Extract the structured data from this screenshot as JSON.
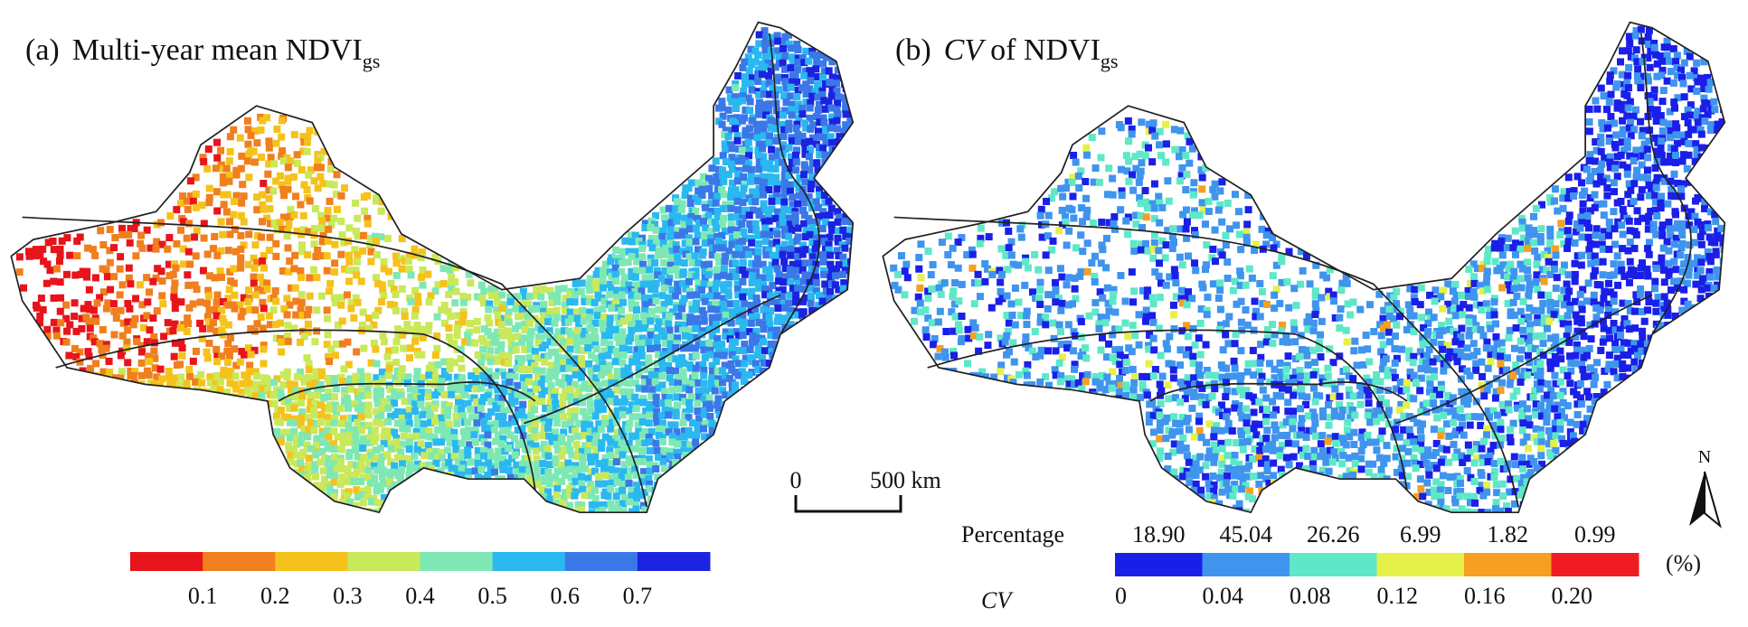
{
  "panel_a": {
    "label": "(a)",
    "title": "Multi-year mean NDVI",
    "title_subscript": "gs",
    "legend": {
      "colors": [
        "#e8141b",
        "#f07f1e",
        "#f5c21b",
        "#c9e85a",
        "#7ee8b4",
        "#2ab8f0",
        "#3a78e8",
        "#1a23e0"
      ],
      "ticks": [
        "0.1",
        "0.2",
        "0.3",
        "0.4",
        "0.5",
        "0.6",
        "0.7"
      ]
    }
  },
  "panel_b": {
    "label": "(b)",
    "title_italic": "CV",
    "title": "of NDVI",
    "title_subscript": "gs",
    "legend": {
      "row_label": "Percentage",
      "percentages": [
        "18.90",
        "45.04",
        "26.26",
        "6.99",
        "1.82",
        "0.99"
      ],
      "axis_label": "CV",
      "unit": "(%)",
      "colors": [
        "#1a1fe8",
        "#3f94ee",
        "#5ee8c8",
        "#e6f04a",
        "#f5a020",
        "#f01c24"
      ],
      "ticks": [
        "0",
        "0.04",
        "0.08",
        "0.12",
        "0.16",
        "0.20"
      ]
    }
  },
  "scale_bar": {
    "start": "0",
    "end": "500 km"
  },
  "north_arrow": "N"
}
